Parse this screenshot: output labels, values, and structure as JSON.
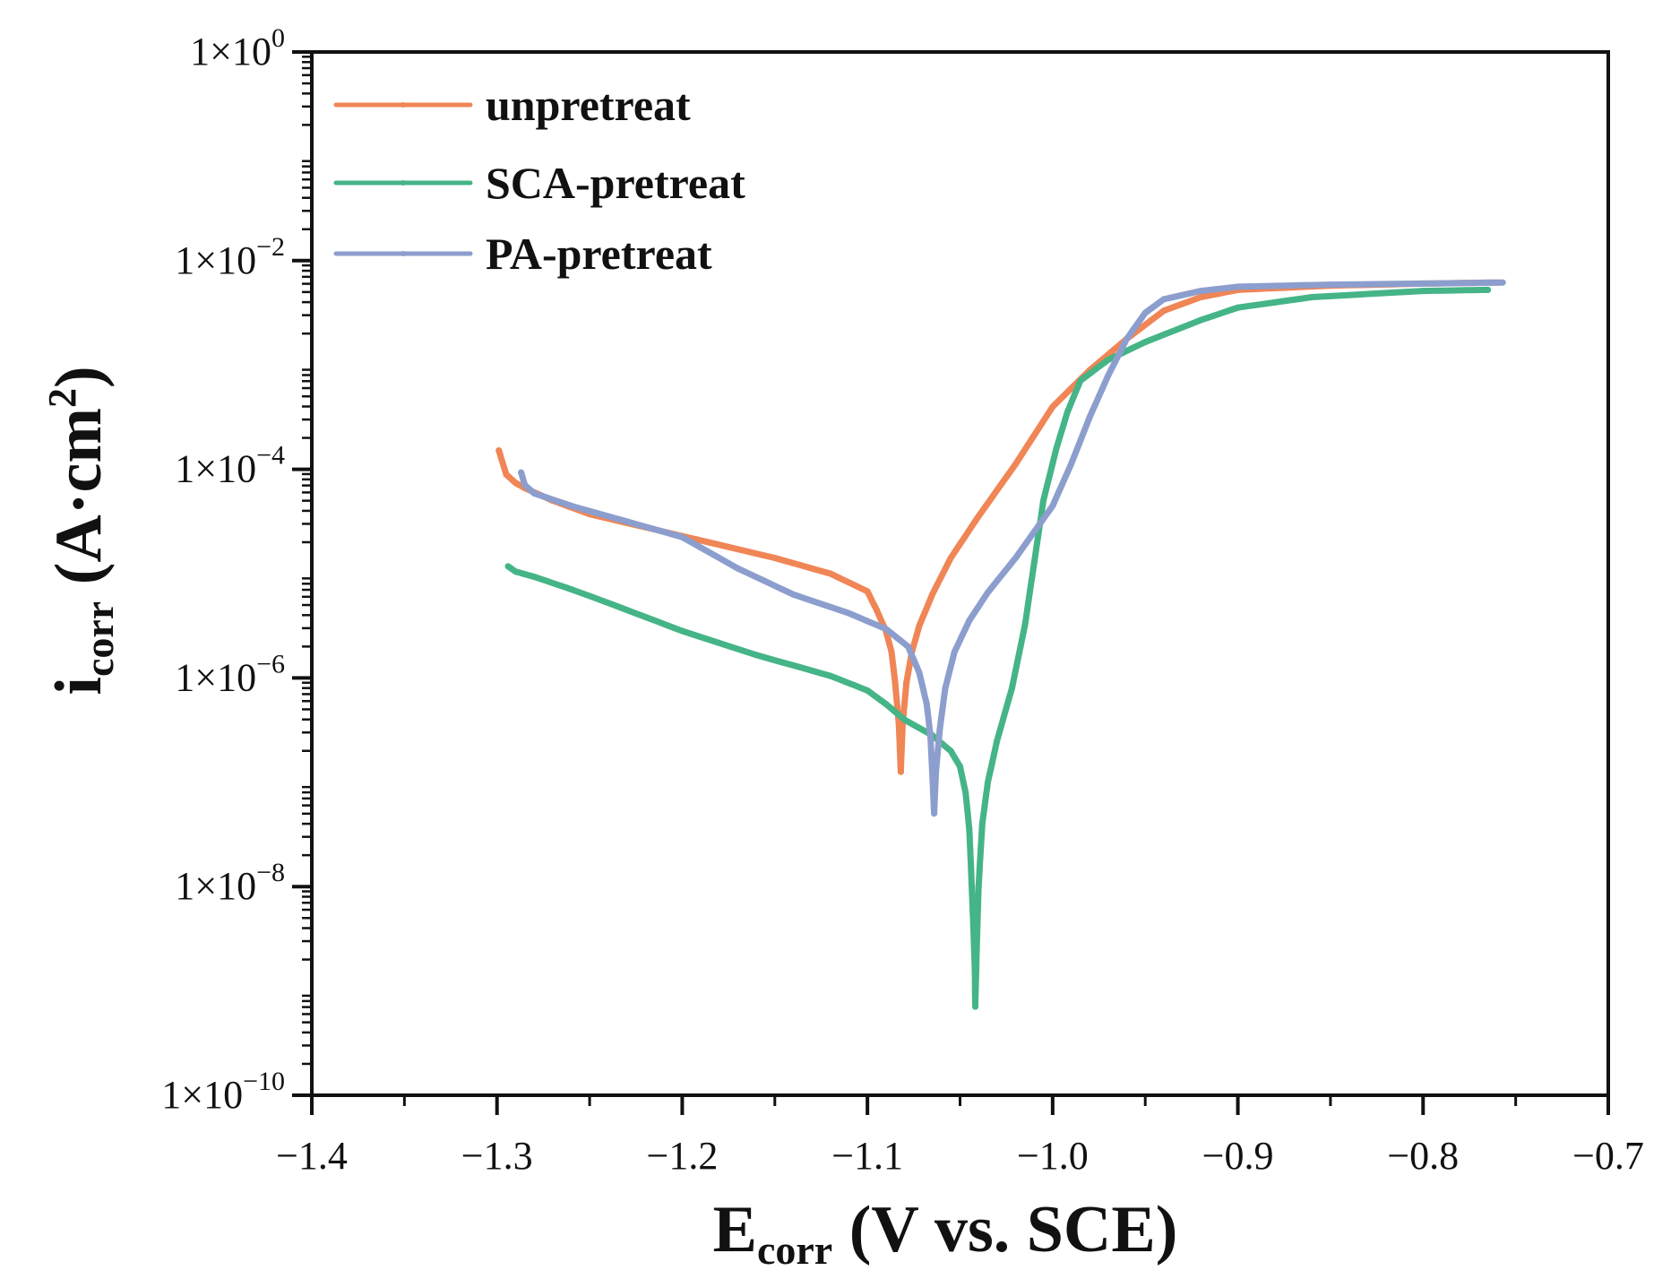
{
  "chart_data": {
    "type": "line",
    "title": "",
    "x_axis": {
      "label_main": "E",
      "label_sub": "corr",
      "label_rest": " (V vs. SCE)",
      "lim": [
        -1.4,
        -0.7
      ],
      "ticks": [
        -1.4,
        -1.3,
        -1.2,
        -1.1,
        -1.0,
        -0.9,
        -0.8,
        -0.7
      ],
      "tick_labels": [
        "−1.4",
        "−1.3",
        "−1.2",
        "−1.1",
        "−1.0",
        "−0.9",
        "−0.8",
        "−0.7"
      ]
    },
    "y_axis": {
      "label_main": "i",
      "label_sub": "corr",
      "label_open": " (A·cm",
      "label_sup": "2",
      "label_close": ")",
      "scale": "log",
      "lim_exp": [
        -10,
        0
      ],
      "ticks_exp": [
        0,
        -2,
        -4,
        -6,
        -8,
        -10
      ],
      "tick_base": "1×10",
      "tick_exps": [
        "0",
        "−2",
        "−4",
        "−6",
        "−8",
        "−10"
      ]
    },
    "legend": {
      "position": "top-left",
      "entries": [
        "unpretreat",
        "SCA-pretreat",
        "PA-pretreat"
      ]
    },
    "series": [
      {
        "name": "unpretreat",
        "color": "#f08556",
        "points": [
          [
            -1.299,
            -3.82
          ],
          [
            -1.295,
            -4.05
          ],
          [
            -1.29,
            -4.13
          ],
          [
            -1.285,
            -4.18
          ],
          [
            -1.27,
            -4.3
          ],
          [
            -1.25,
            -4.43
          ],
          [
            -1.2,
            -4.64
          ],
          [
            -1.15,
            -4.85
          ],
          [
            -1.12,
            -5.0
          ],
          [
            -1.1,
            -5.17
          ],
          [
            -1.095,
            -5.35
          ],
          [
            -1.09,
            -5.55
          ],
          [
            -1.087,
            -5.75
          ],
          [
            -1.085,
            -6.05
          ],
          [
            -1.083,
            -6.45
          ],
          [
            -1.082,
            -6.9
          ],
          [
            -1.081,
            -6.45
          ],
          [
            -1.079,
            -6.05
          ],
          [
            -1.076,
            -5.75
          ],
          [
            -1.072,
            -5.5
          ],
          [
            -1.065,
            -5.2
          ],
          [
            -1.055,
            -4.85
          ],
          [
            -1.04,
            -4.45
          ],
          [
            -1.02,
            -3.95
          ],
          [
            -1.0,
            -3.4
          ],
          [
            -0.98,
            -3.05
          ],
          [
            -0.96,
            -2.75
          ],
          [
            -0.94,
            -2.48
          ],
          [
            -0.92,
            -2.35
          ],
          [
            -0.9,
            -2.28
          ],
          [
            -0.85,
            -2.24
          ],
          [
            -0.8,
            -2.22
          ],
          [
            -0.76,
            -2.21
          ]
        ]
      },
      {
        "name": "SCA-pretreat",
        "color": "#45b487",
        "points": [
          [
            -1.294,
            -4.93
          ],
          [
            -1.29,
            -4.98
          ],
          [
            -1.28,
            -5.03
          ],
          [
            -1.26,
            -5.15
          ],
          [
            -1.24,
            -5.28
          ],
          [
            -1.2,
            -5.55
          ],
          [
            -1.16,
            -5.78
          ],
          [
            -1.12,
            -5.98
          ],
          [
            -1.1,
            -6.12
          ],
          [
            -1.09,
            -6.25
          ],
          [
            -1.08,
            -6.4
          ],
          [
            -1.065,
            -6.55
          ],
          [
            -1.055,
            -6.7
          ],
          [
            -1.05,
            -6.85
          ],
          [
            -1.047,
            -7.1
          ],
          [
            -1.045,
            -7.45
          ],
          [
            -1.044,
            -7.85
          ],
          [
            -1.043,
            -8.3
          ],
          [
            -1.042,
            -8.8
          ],
          [
            -1.0418,
            -9.15
          ],
          [
            -1.041,
            -8.6
          ],
          [
            -1.04,
            -8.0
          ],
          [
            -1.038,
            -7.4
          ],
          [
            -1.035,
            -7.0
          ],
          [
            -1.03,
            -6.6
          ],
          [
            -1.022,
            -6.1
          ],
          [
            -1.015,
            -5.5
          ],
          [
            -1.01,
            -4.9
          ],
          [
            -1.005,
            -4.3
          ],
          [
            -0.998,
            -3.8
          ],
          [
            -0.992,
            -3.45
          ],
          [
            -0.985,
            -3.15
          ],
          [
            -0.97,
            -2.95
          ],
          [
            -0.95,
            -2.78
          ],
          [
            -0.92,
            -2.57
          ],
          [
            -0.9,
            -2.45
          ],
          [
            -0.86,
            -2.35
          ],
          [
            -0.8,
            -2.29
          ],
          [
            -0.765,
            -2.28
          ]
        ]
      },
      {
        "name": "PA-pretreat",
        "color": "#8c9ecd",
        "points": [
          [
            -1.287,
            -4.03
          ],
          [
            -1.285,
            -4.15
          ],
          [
            -1.28,
            -4.23
          ],
          [
            -1.26,
            -4.35
          ],
          [
            -1.23,
            -4.5
          ],
          [
            -1.2,
            -4.65
          ],
          [
            -1.17,
            -4.95
          ],
          [
            -1.14,
            -5.2
          ],
          [
            -1.11,
            -5.38
          ],
          [
            -1.09,
            -5.53
          ],
          [
            -1.078,
            -5.7
          ],
          [
            -1.072,
            -5.95
          ],
          [
            -1.068,
            -6.25
          ],
          [
            -1.066,
            -6.55
          ],
          [
            -1.065,
            -6.9
          ],
          [
            -1.064,
            -7.3
          ],
          [
            -1.063,
            -6.9
          ],
          [
            -1.061,
            -6.5
          ],
          [
            -1.058,
            -6.1
          ],
          [
            -1.053,
            -5.75
          ],
          [
            -1.045,
            -5.45
          ],
          [
            -1.035,
            -5.18
          ],
          [
            -1.02,
            -4.85
          ],
          [
            -1.0,
            -4.35
          ],
          [
            -0.99,
            -3.95
          ],
          [
            -0.98,
            -3.5
          ],
          [
            -0.97,
            -3.1
          ],
          [
            -0.96,
            -2.75
          ],
          [
            -0.95,
            -2.5
          ],
          [
            -0.94,
            -2.37
          ],
          [
            -0.92,
            -2.29
          ],
          [
            -0.9,
            -2.25
          ],
          [
            -0.85,
            -2.23
          ],
          [
            -0.8,
            -2.22
          ],
          [
            -0.757,
            -2.21
          ]
        ]
      }
    ]
  }
}
